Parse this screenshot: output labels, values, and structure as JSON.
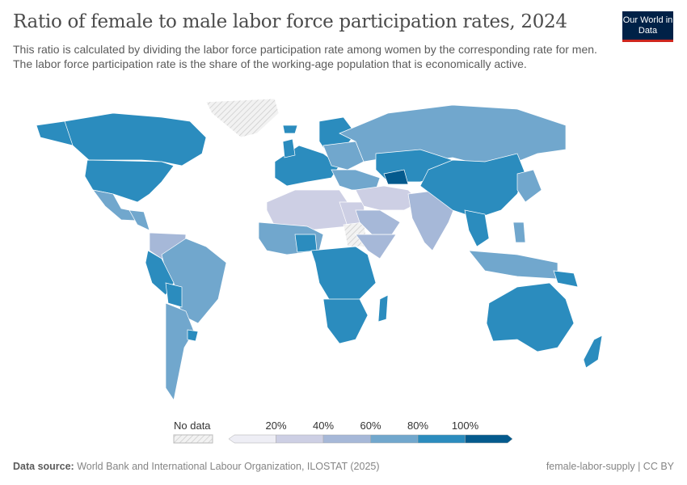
{
  "header": {
    "title": "Ratio of female to male labor force participation rates, 2024",
    "subtitle": "This ratio is calculated by dividing the labor force participation rate among women by the corresponding rate for men. The labor force participation rate is the share of the working-age population that is economically active.",
    "logo": "Our World in Data"
  },
  "legend": {
    "no_data_label": "No data",
    "no_data_color": "#e8e8e8",
    "ticks": [
      "20%",
      "40%",
      "60%",
      "80%",
      "100%"
    ],
    "bins": [
      {
        "range": "<20%",
        "color": "#eeeef5"
      },
      {
        "range": "20–40%",
        "color": "#cdcfe4"
      },
      {
        "range": "40–60%",
        "color": "#a6b8d8"
      },
      {
        "range": "60–80%",
        "color": "#71a7cd"
      },
      {
        "range": "80–100%",
        "color": "#2b8cbe"
      },
      {
        "range": ">100%",
        "color": "#045a8d"
      }
    ]
  },
  "footer": {
    "source_label": "Data source:",
    "source": "World Bank and International Labour Organization, ILOSTAT (2025)",
    "license": "female-labor-supply | CC BY"
  }
}
